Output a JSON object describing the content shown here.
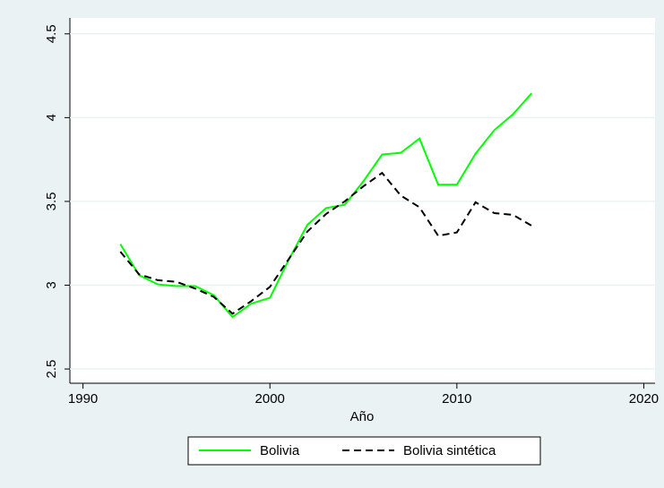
{
  "chart_data": {
    "type": "line",
    "x_label": "Año",
    "x": [
      1992,
      1993,
      1994,
      1995,
      1996,
      1997,
      1998,
      1999,
      2000,
      2001,
      2002,
      2003,
      2004,
      2005,
      2006,
      2007,
      2008,
      2009,
      2010,
      2011,
      2012,
      2013,
      2014
    ],
    "series": [
      {
        "name": "Bolivia",
        "color": "#00ff00",
        "dash": "solid",
        "values": [
          3.245,
          3.06,
          3.005,
          2.995,
          2.995,
          2.94,
          2.81,
          2.89,
          2.925,
          3.15,
          3.36,
          3.46,
          3.48,
          3.62,
          3.78,
          3.79,
          3.875,
          3.6,
          3.6,
          3.785,
          3.925,
          4.02,
          4.145
        ]
      },
      {
        "name": "Bolivia sintética",
        "color": "#000000",
        "dash": "dashed",
        "values": [
          3.2,
          3.065,
          3.03,
          3.02,
          2.98,
          2.93,
          2.83,
          2.905,
          2.99,
          3.155,
          3.32,
          3.425,
          3.5,
          3.59,
          3.67,
          3.535,
          3.465,
          3.295,
          3.315,
          3.495,
          3.43,
          3.42,
          3.355
        ]
      }
    ],
    "xlim": [
      1989.3,
      2020.6
    ],
    "xticks": [
      1990,
      2000,
      2010,
      2020
    ],
    "ylim": [
      2.415,
      4.595
    ],
    "yticks": [
      2.5,
      3,
      3.5,
      4,
      4.5
    ],
    "grid": true,
    "legend": "bottom"
  }
}
